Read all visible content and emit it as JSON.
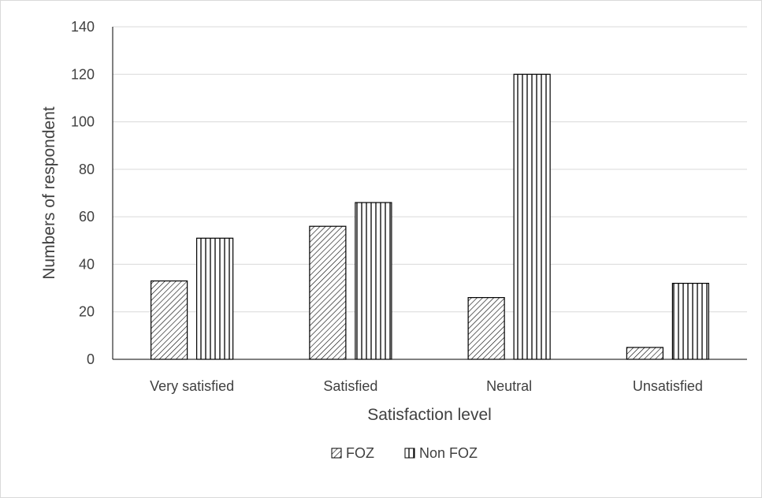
{
  "chart_data": {
    "type": "bar",
    "title": "",
    "xlabel": "Satisfaction level",
    "ylabel": "Numbers of respondent",
    "categories": [
      "Very satisfied",
      "Satisfied",
      "Neutral",
      "Unsatisfied"
    ],
    "series": [
      {
        "name": "FOZ",
        "values": [
          33,
          56,
          26,
          5
        ],
        "pattern": "diagonal-hatch",
        "color": "#000000"
      },
      {
        "name": "Non FOZ",
        "values": [
          51,
          66,
          120,
          32
        ],
        "pattern": "vertical-hatch",
        "color": "#000000"
      }
    ],
    "ylim": [
      0,
      140
    ],
    "yticks": [
      "0",
      "20",
      "40",
      "60",
      "80",
      "100",
      "120",
      "140"
    ],
    "grid": true,
    "gridColor": "#d9d9d9",
    "legend": "bottom"
  }
}
